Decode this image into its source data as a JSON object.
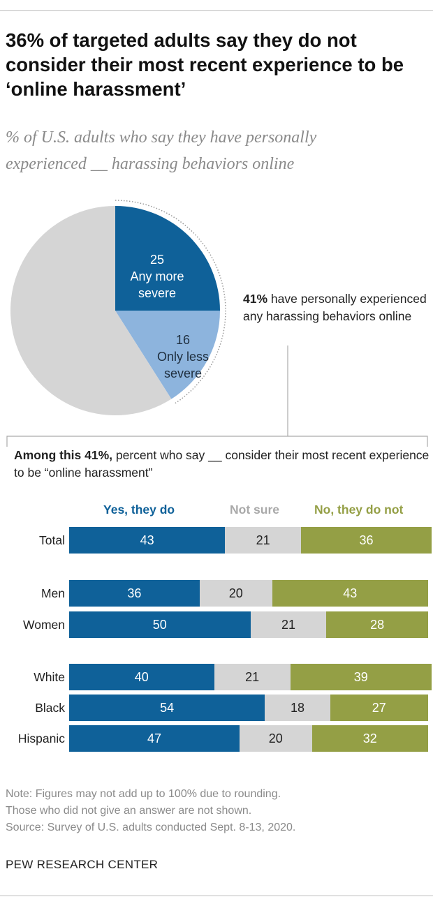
{
  "title": "36% of targeted adults say they do not consider their most recent experience to be ‘online harassment’",
  "subtitle_line1": "% of U.S. adults who say they have personally",
  "subtitle_line2": "experienced __ harassing behaviors online",
  "callout": {
    "bold": "41%",
    "rest": " have personally experienced any harassing behaviors online"
  },
  "among": {
    "bold": "Among this 41%,",
    "rest": " percent who say __ consider their most recent experience to be “online harassment”"
  },
  "colors": {
    "dark_blue": "#0f6199",
    "light_blue": "#8db4dd",
    "gray": "#d5d5d5",
    "olive": "#949f45"
  },
  "chart_data": [
    {
      "type": "pie",
      "slices": [
        {
          "label": "Any more severe",
          "value": 25,
          "color": "#0f6199"
        },
        {
          "label": "Only less severe",
          "value": 16,
          "color": "#8db4dd"
        },
        {
          "label": "",
          "value": 59,
          "color": "#d5d5d5"
        }
      ]
    },
    {
      "type": "bar",
      "orientation": "horizontal",
      "stacked": true,
      "categories": [
        "Total",
        "Men",
        "Women",
        "White",
        "Black",
        "Hispanic"
      ],
      "series": [
        {
          "name": "Yes, they do",
          "color": "#0f6199",
          "values": [
            43,
            36,
            50,
            40,
            54,
            47
          ]
        },
        {
          "name": "Not sure",
          "color": "#d5d5d5",
          "values": [
            21,
            20,
            21,
            21,
            18,
            20
          ]
        },
        {
          "name": "No, they do not",
          "color": "#949f45",
          "values": [
            36,
            43,
            28,
            39,
            27,
            32
          ]
        }
      ],
      "xlim": [
        0,
        100
      ]
    }
  ],
  "notes": [
    "Note: Figures may not add up to 100% due to rounding.",
    "Those who did not give an answer are not shown.",
    "Source: Survey of U.S. adults conducted Sept. 8-13, 2020."
  ],
  "source_org": "PEW RESEARCH CENTER"
}
